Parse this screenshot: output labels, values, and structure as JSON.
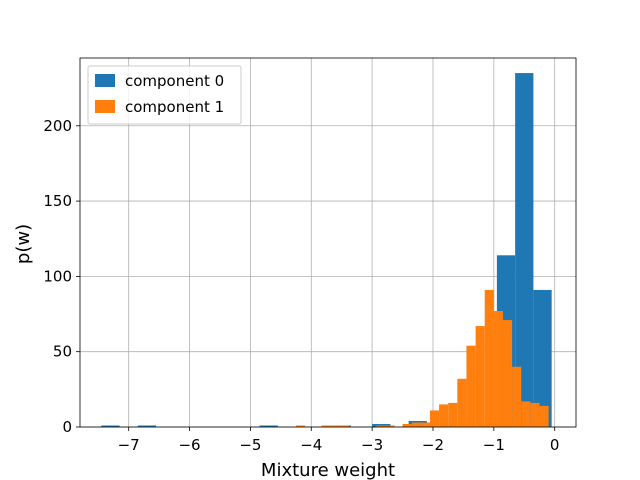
{
  "chart_data": {
    "type": "bar",
    "title": "",
    "xlabel": "Mixture weight",
    "ylabel": "p(w)",
    "xlim": [
      -7.8,
      0.35
    ],
    "ylim": [
      0,
      245
    ],
    "xticks": [
      -7,
      -6,
      -5,
      -4,
      -3,
      -2,
      -1,
      0
    ],
    "xtick_labels": [
      "−7",
      "−6",
      "−5",
      "−4",
      "−3",
      "−2",
      "−1",
      "0"
    ],
    "yticks": [
      0,
      50,
      100,
      150,
      200
    ],
    "ytick_labels": [
      "0",
      "50",
      "100",
      "150",
      "200"
    ],
    "grid": true,
    "legend_position": "top-left",
    "series": [
      {
        "name": "component 0",
        "color": "#1f77b4",
        "bins": [
          {
            "x0": -7.45,
            "x1": -7.15,
            "value": 1
          },
          {
            "x0": -6.85,
            "x1": -6.55,
            "value": 1
          },
          {
            "x0": -4.85,
            "x1": -4.55,
            "value": 1
          },
          {
            "x0": -3.65,
            "x1": -3.35,
            "value": 1
          },
          {
            "x0": -3.0,
            "x1": -2.7,
            "value": 2
          },
          {
            "x0": -2.4,
            "x1": -2.1,
            "value": 4
          },
          {
            "x0": -0.95,
            "x1": -0.65,
            "value": 114
          },
          {
            "x0": -0.65,
            "x1": -0.35,
            "value": 235
          },
          {
            "x0": -0.35,
            "x1": -0.05,
            "value": 91
          }
        ]
      },
      {
        "name": "component 1",
        "color": "#ff7f0e",
        "bins": [
          {
            "x0": -4.25,
            "x1": -4.1,
            "value": 1
          },
          {
            "x0": -3.83,
            "x1": -3.68,
            "value": 1
          },
          {
            "x0": -3.68,
            "x1": -3.53,
            "value": 1
          },
          {
            "x0": -3.53,
            "x1": -3.38,
            "value": 1
          },
          {
            "x0": -2.93,
            "x1": -2.78,
            "value": 1
          },
          {
            "x0": -2.78,
            "x1": -2.63,
            "value": 1
          },
          {
            "x0": -2.5,
            "x1": -2.35,
            "value": 2
          },
          {
            "x0": -2.35,
            "x1": -2.2,
            "value": 3
          },
          {
            "x0": -2.2,
            "x1": -2.05,
            "value": 3
          },
          {
            "x0": -2.05,
            "x1": -1.9,
            "value": 11
          },
          {
            "x0": -1.9,
            "x1": -1.75,
            "value": 15
          },
          {
            "x0": -1.75,
            "x1": -1.6,
            "value": 16
          },
          {
            "x0": -1.6,
            "x1": -1.45,
            "value": 32
          },
          {
            "x0": -1.45,
            "x1": -1.3,
            "value": 54
          },
          {
            "x0": -1.3,
            "x1": -1.15,
            "value": 67
          },
          {
            "x0": -1.15,
            "x1": -1.0,
            "value": 91
          },
          {
            "x0": -1.0,
            "x1": -0.85,
            "value": 77
          },
          {
            "x0": -0.85,
            "x1": -0.7,
            "value": 71
          },
          {
            "x0": -0.7,
            "x1": -0.55,
            "value": 40
          },
          {
            "x0": -0.55,
            "x1": -0.4,
            "value": 17
          },
          {
            "x0": -0.4,
            "x1": -0.25,
            "value": 16
          },
          {
            "x0": -0.25,
            "x1": -0.1,
            "value": 14
          }
        ]
      }
    ]
  }
}
